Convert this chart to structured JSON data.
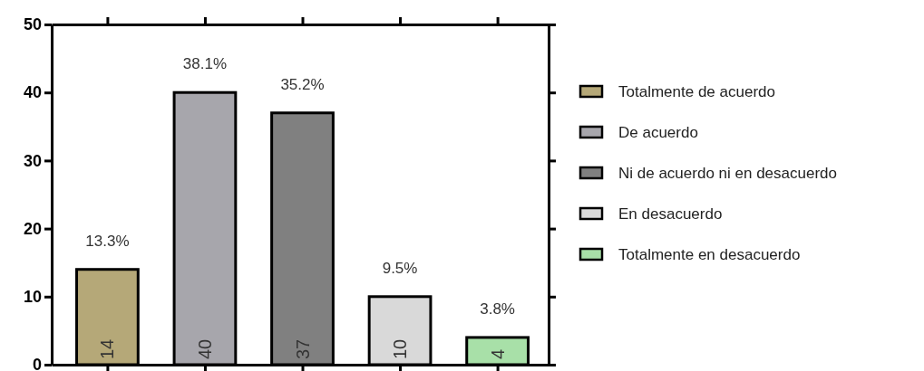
{
  "chart_data": {
    "type": "bar",
    "categories": [
      null,
      null,
      null,
      null,
      null
    ],
    "series": [
      {
        "name": "Totalmente de acuerdo",
        "color": "#b5a878",
        "values": [
          14,
          null,
          null,
          null,
          null
        ]
      },
      {
        "name": "De acuerdo",
        "color": "#a7a6ac",
        "values": [
          null,
          40,
          null,
          null,
          null
        ]
      },
      {
        "name": "Ni de acuerdo ni en desacuerdo",
        "color": "#808080",
        "values": [
          null,
          null,
          37,
          null,
          null
        ]
      },
      {
        "name": "En desacuerdo",
        "color": "#d9d9d9",
        "values": [
          null,
          null,
          null,
          10,
          null
        ]
      },
      {
        "name": "Totalmente en desacuerdo",
        "color": "#a8e0a8",
        "values": [
          null,
          null,
          null,
          null,
          4
        ]
      }
    ],
    "ylim": [
      0,
      50
    ],
    "yticks": [
      0,
      10,
      20,
      30,
      40,
      50
    ],
    "tick_labels": "y",
    "data_labels": true,
    "legend": "right",
    "grid": false,
    "annotations": [
      {
        "text": "13.3%",
        "y": 14
      },
      {
        "text": "38.1%",
        "y": 40
      },
      {
        "text": "35.2%",
        "y": 37
      },
      {
        "text": "9.5%",
        "y": 10
      },
      {
        "text": "3.8%",
        "y": 4
      }
    ]
  }
}
